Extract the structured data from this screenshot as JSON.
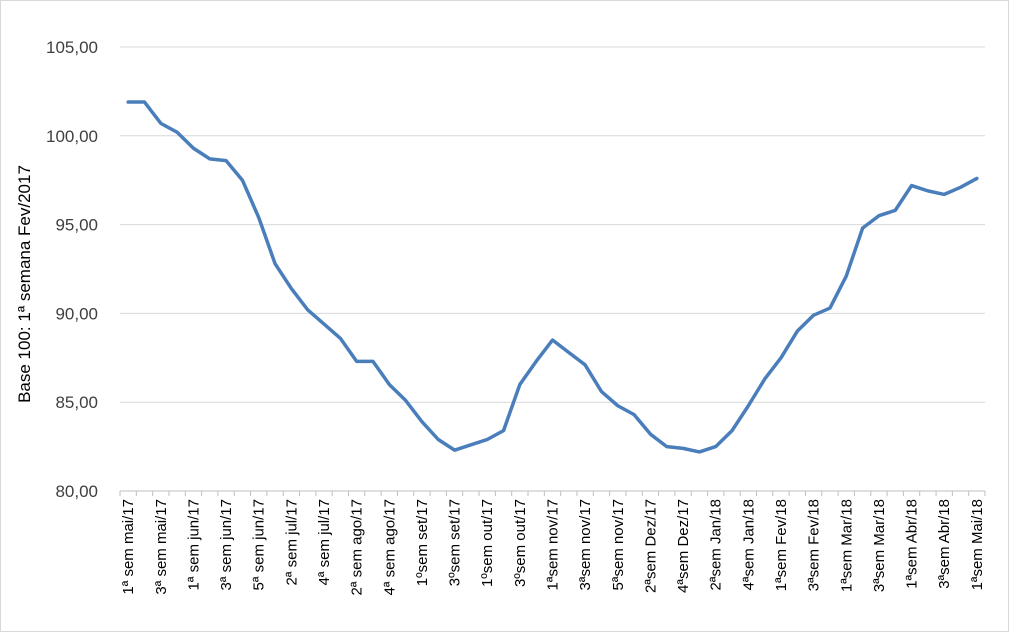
{
  "chart_data": {
    "type": "line",
    "title": "",
    "xlabel": "",
    "ylabel": "Base 100: 1ª semana Fev/2017",
    "ylim": [
      80,
      105
    ],
    "yticks": [
      "80,00",
      "85,00",
      "90,00",
      "95,00",
      "100,00",
      "105,00"
    ],
    "grid": "horizontal",
    "legend": "none",
    "colors": {
      "line": "#4a7ebb",
      "grid": "#d9d9d9",
      "axis": "#bfbfbf"
    },
    "x_tick_labels": [
      "1ª sem mai/17",
      "3ª sem mai/17",
      "1ª sem jun/17",
      "3ª sem jun/17",
      "5ª sem jun/17",
      "2ª sem jul/17",
      "4ª sem jul/17",
      "2ª sem ago/17",
      "4ª sem ago/17",
      "1ºsem set/17",
      "3ºsem set/17",
      "1ºsem out/17",
      "3ºsem out/17",
      "1ªsem nov/17",
      "3ªsem nov/17",
      "5ªsem nov/17",
      "2ªsem Dez/17",
      "4ªsem Dez/17",
      "2ªsem Jan/18",
      "4ªsem Jan/18",
      "1ªsem Fev/18",
      "3ªsem Fev/18",
      "1ªsem Mar/18",
      "3ªsem Mar/18",
      "1ªsem Abr/18",
      "3ªsem Abr/18",
      "1ªsem Mai/18"
    ],
    "series": [
      {
        "values": [
          101.9,
          101.9,
          100.7,
          100.2,
          99.3,
          98.7,
          98.6,
          97.5,
          95.4,
          92.8,
          91.4,
          90.2,
          89.4,
          88.6,
          87.3,
          87.3,
          86.0,
          85.1,
          83.9,
          82.9,
          82.3,
          82.6,
          82.9,
          83.4,
          86.0,
          87.3,
          88.5,
          87.8,
          87.1,
          85.6,
          84.8,
          84.3,
          83.2,
          82.5,
          82.4,
          82.2,
          82.5,
          83.4,
          84.8,
          86.3,
          87.5,
          89.0,
          89.9,
          90.3,
          92.1,
          94.8,
          95.5,
          95.8,
          97.2,
          96.9,
          96.7,
          97.1,
          97.6
        ]
      }
    ]
  }
}
